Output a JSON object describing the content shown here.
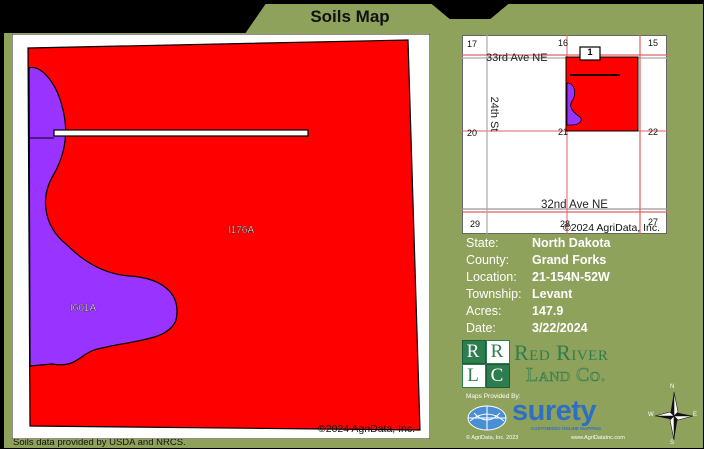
{
  "header": {
    "title": "Soils Map"
  },
  "main_map": {
    "copyright": "©2024 AgriData, Inc.",
    "source_note": "Soils data provided by USDA and NRCS.",
    "soil_units": [
      {
        "symbol": "I176A",
        "color": "#ff0000"
      },
      {
        "symbol": "I601A",
        "color": "#9933ff"
      }
    ]
  },
  "locator_map": {
    "section_numbers": [
      "17",
      "16",
      "15",
      "20",
      "21",
      "22",
      "29",
      "28",
      "27"
    ],
    "roads": [
      "33rd Ave NE",
      "24th St",
      "32nd Ave NE"
    ],
    "marker": "1",
    "copyright": "©2024 AgriData, Inc."
  },
  "info": [
    {
      "label": "State:",
      "value": "North Dakota"
    },
    {
      "label": "County:",
      "value": "Grand Forks"
    },
    {
      "label": "Location:",
      "value": "21-154N-52W"
    },
    {
      "label": "Township:",
      "value": "Levant"
    },
    {
      "label": "Acres:",
      "value": "147.9"
    },
    {
      "label": "Date:",
      "value": "3/22/2024"
    }
  ],
  "branding": {
    "logo_initials": [
      "R",
      "R",
      "L",
      "C"
    ],
    "logo_name_line1": "Red River",
    "logo_name_line2": "Land Co.",
    "maps_provided_by": "Maps Provided By:",
    "surety_name": "surety",
    "surety_tagline": "CUSTOMIZED ONLINE MAPPING",
    "agridata_copyright": "© AgriData, Inc. 2023",
    "website": "www.AgriDataInc.com"
  },
  "compass": {
    "n": "N",
    "s": "S",
    "e": "E",
    "w": "W"
  },
  "colors": {
    "background": "#8fa25b",
    "soil_main": "#ff0000",
    "soil_inclusion": "#9933ff",
    "logo_green": "#2e7d4f"
  }
}
